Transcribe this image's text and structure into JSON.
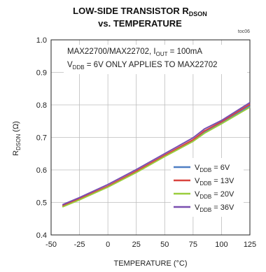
{
  "chart_data": {
    "type": "line",
    "title_line1": "LOW-SIDE TRANSISTOR R",
    "title_sub": "DSON",
    "title_line2": "vs. TEMPERATURE",
    "figure_id": "toc06",
    "xlabel": "TEMPERATURE (°C)",
    "ylabel_main": "R",
    "ylabel_sub": "DSON",
    "ylabel_unit": " (Ω)",
    "xlim": [
      -50,
      125
    ],
    "ylim": [
      0.4,
      1.0
    ],
    "x_ticks": [
      "-50",
      "-25",
      "0",
      "25",
      "50",
      "75",
      "100",
      "125"
    ],
    "y_ticks": [
      "0.4",
      "0.5",
      "0.6",
      "0.7",
      "0.8",
      "0.9",
      "1.0"
    ],
    "grid": true,
    "annotation": {
      "line1_pre": "MAX22700/MAX22702, I",
      "line1_sub": "OUT",
      "line1_post": " = 100mA",
      "line2_pre": "V",
      "line2_sub": "DDB",
      "line2_post": " = 6V ONLY APPLIES TO MAX22702"
    },
    "legend_position": "bottom-right",
    "x": [
      -40,
      -25,
      0,
      25,
      50,
      75,
      85,
      100,
      125
    ],
    "series": [
      {
        "name_pre": "V",
        "name_sub": "DDB",
        "name_post": " = 6V",
        "color": "#4f7fc4",
        "values": [
          0.488,
          0.51,
          0.548,
          0.594,
          0.643,
          0.69,
          0.716,
          0.745,
          0.797
        ]
      },
      {
        "name_pre": "V",
        "name_sub": "DDB",
        "name_post": " = 13V",
        "color": "#d9443f",
        "values": [
          0.489,
          0.511,
          0.55,
          0.596,
          0.645,
          0.693,
          0.72,
          0.748,
          0.802
        ]
      },
      {
        "name_pre": "V",
        "name_sub": "DDB",
        "name_post": " = 20V",
        "color": "#9acd3c",
        "values": [
          0.486,
          0.508,
          0.547,
          0.592,
          0.641,
          0.688,
          0.713,
          0.742,
          0.793
        ]
      },
      {
        "name_pre": "V",
        "name_sub": "DDB",
        "name_post": " = 36V",
        "color": "#7a4fb0",
        "values": [
          0.493,
          0.515,
          0.555,
          0.601,
          0.65,
          0.699,
          0.726,
          0.752,
          0.807
        ]
      }
    ]
  }
}
